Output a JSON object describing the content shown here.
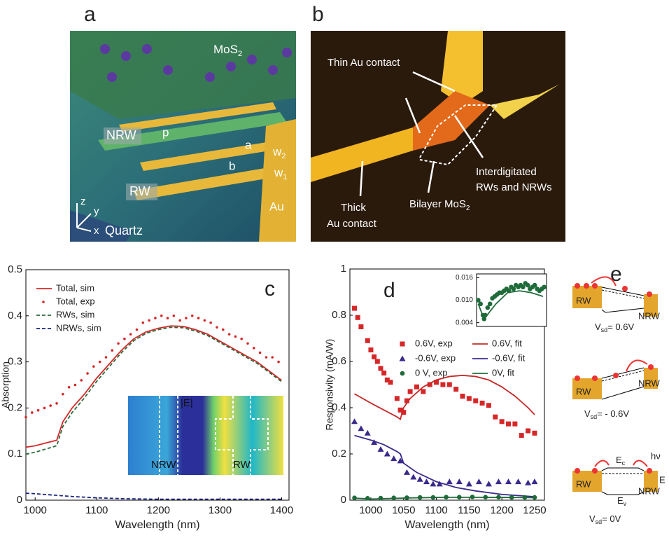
{
  "panel_a": {
    "label": "a",
    "mos2": "MoS",
    "mos2_sub": "2",
    "nrw": "NRW",
    "rw": "RW",
    "p": "p",
    "a": "a",
    "b": "b",
    "w2": "w",
    "w2_sub": "2",
    "w1": "w",
    "w1_sub": "1",
    "au": "Au",
    "z": "z",
    "y": "y",
    "x": "x",
    "quartz": "Quartz"
  },
  "panel_b": {
    "label": "b",
    "thin": "Thin Au contact",
    "inter1": "Interdigitated",
    "inter2": "RWs and NRWs",
    "thick1": "Thick",
    "thick2": "Au contact",
    "bilayer": "Bilayer MoS",
    "bilayer_sub": "2"
  },
  "panel_e": {
    "label": "e",
    "diagrams": [
      {
        "rw": "RW",
        "nrw": "NRW",
        "v": "V",
        "v_sub": "sd",
        "v_rest": "= 0.6V"
      },
      {
        "rw": "RW",
        "nrw": "NRW",
        "v": "V",
        "v_sub": "sd",
        "v_rest": "= - 0.6V"
      },
      {
        "rw": "RW",
        "nrw": "NRW",
        "v": "V",
        "v_sub": "sd",
        "v_rest": "= 0V",
        "ec": "E",
        "ec_sub": "c",
        "ev": "E",
        "ev_sub": "v",
        "hv": "hν",
        "ef": "E"
      }
    ]
  },
  "chart_data": [
    {
      "type": "line",
      "panel": "c",
      "xlabel": "Wavelength (nm)",
      "ylabel": "Absorption",
      "xlim": [
        985,
        1412
      ],
      "xticks": [
        1000,
        1100,
        1200,
        1300,
        1400
      ],
      "ylim": [
        0,
        0.5
      ],
      "yticks": [
        0,
        0.1,
        0.2,
        0.3,
        0.4,
        0.5
      ],
      "legend": "upper left",
      "annotations": [
        "|E|",
        "NRW",
        "RW"
      ],
      "series": [
        {
          "name": "Total, sim",
          "color": "#d62728",
          "style": "solid",
          "x": [
            985,
            1000,
            1020,
            1035,
            1045,
            1060,
            1080,
            1100,
            1120,
            1140,
            1160,
            1180,
            1200,
            1220,
            1240,
            1260,
            1280,
            1300,
            1320,
            1340,
            1360,
            1380,
            1400
          ],
          "values": [
            0.115,
            0.118,
            0.125,
            0.13,
            0.17,
            0.2,
            0.23,
            0.265,
            0.295,
            0.325,
            0.35,
            0.365,
            0.373,
            0.378,
            0.377,
            0.37,
            0.36,
            0.345,
            0.33,
            0.315,
            0.3,
            0.28,
            0.26
          ]
        },
        {
          "name": "Total, exp",
          "color": "#d62728",
          "marker": "dot",
          "x": [
            985,
            995,
            1005,
            1015,
            1025,
            1035,
            1045,
            1055,
            1065,
            1075,
            1085,
            1095,
            1105,
            1115,
            1125,
            1135,
            1145,
            1155,
            1165,
            1175,
            1185,
            1195,
            1205,
            1215,
            1225,
            1235,
            1245,
            1255,
            1265,
            1275,
            1285,
            1295,
            1305,
            1315,
            1325,
            1335,
            1345,
            1355,
            1365,
            1375,
            1385,
            1395
          ],
          "values": [
            0.18,
            0.19,
            0.195,
            0.2,
            0.205,
            0.21,
            0.23,
            0.245,
            0.25,
            0.26,
            0.275,
            0.29,
            0.3,
            0.31,
            0.325,
            0.34,
            0.35,
            0.36,
            0.37,
            0.385,
            0.39,
            0.395,
            0.4,
            0.395,
            0.4,
            0.39,
            0.395,
            0.4,
            0.395,
            0.39,
            0.385,
            0.375,
            0.37,
            0.36,
            0.355,
            0.35,
            0.34,
            0.33,
            0.32,
            0.31,
            0.31,
            0.3
          ]
        },
        {
          "name": "RWs, sim",
          "color": "#2e6b3a",
          "style": "dashed",
          "x": [
            985,
            1000,
            1020,
            1035,
            1045,
            1060,
            1080,
            1100,
            1120,
            1140,
            1160,
            1180,
            1200,
            1220,
            1240,
            1260,
            1280,
            1300,
            1320,
            1340,
            1360,
            1380,
            1400
          ],
          "values": [
            0.1,
            0.104,
            0.112,
            0.118,
            0.16,
            0.19,
            0.222,
            0.258,
            0.289,
            0.32,
            0.346,
            0.362,
            0.37,
            0.375,
            0.374,
            0.367,
            0.357,
            0.342,
            0.327,
            0.312,
            0.297,
            0.277,
            0.257
          ]
        },
        {
          "name": "NRWs, sim",
          "color": "#1a237e",
          "style": "dashed",
          "x": [
            985,
            1000,
            1030,
            1060,
            1100,
            1150,
            1200,
            1300,
            1400
          ],
          "values": [
            0.015,
            0.014,
            0.011,
            0.008,
            0.005,
            0.003,
            0.002,
            0.002,
            0.002
          ]
        }
      ]
    },
    {
      "type": "line",
      "panel": "d",
      "xlabel": "Wavelength (nm)",
      "ylabel": "Responsivity (mA/W)",
      "xlim": [
        968,
        1265
      ],
      "xticks": [
        1000,
        1050,
        1100,
        1150,
        1200,
        1250
      ],
      "ylim": [
        0,
        1
      ],
      "yticks": [
        0,
        0.2,
        0.4,
        0.6,
        0.8,
        1
      ],
      "legend": "upper right",
      "series": [
        {
          "name": "0.6V, exp",
          "color": "#d62728",
          "marker": "square",
          "x": [
            975,
            980,
            985,
            995,
            1000,
            1005,
            1010,
            1015,
            1020,
            1025,
            1030,
            1040,
            1045,
            1050,
            1055,
            1060,
            1070,
            1080,
            1090,
            1100,
            1110,
            1120,
            1130,
            1140,
            1150,
            1160,
            1170,
            1180,
            1190,
            1200,
            1210,
            1220,
            1230,
            1240,
            1250
          ],
          "values": [
            0.83,
            0.79,
            0.75,
            0.69,
            0.65,
            0.62,
            0.6,
            0.57,
            0.55,
            0.52,
            0.51,
            0.44,
            0.39,
            0.38,
            0.43,
            0.47,
            0.49,
            0.47,
            0.5,
            0.51,
            0.5,
            0.5,
            0.48,
            0.45,
            0.44,
            0.43,
            0.42,
            0.41,
            0.36,
            0.34,
            0.33,
            0.33,
            0.28,
            0.3,
            0.29
          ]
        },
        {
          "name": "0.6V, fit",
          "color": "#c62828",
          "style": "solid",
          "x": [
            975,
            1000,
            1020,
            1040,
            1045,
            1050,
            1060,
            1080,
            1100,
            1120,
            1140,
            1160,
            1180,
            1200,
            1220,
            1240,
            1250
          ],
          "values": [
            0.46,
            0.42,
            0.39,
            0.36,
            0.35,
            0.4,
            0.44,
            0.49,
            0.52,
            0.535,
            0.54,
            0.535,
            0.52,
            0.49,
            0.45,
            0.4,
            0.37
          ]
        },
        {
          "name": "-0.6V, exp",
          "color": "#3b2a8c",
          "marker": "triangle",
          "x": [
            975,
            985,
            995,
            1005,
            1015,
            1025,
            1035,
            1045,
            1055,
            1065,
            1075,
            1085,
            1095,
            1105,
            1120,
            1135,
            1150,
            1165,
            1180,
            1195,
            1210,
            1225,
            1240,
            1250
          ],
          "values": [
            0.34,
            0.31,
            0.29,
            0.25,
            0.22,
            0.2,
            0.18,
            0.17,
            0.12,
            0.1,
            0.09,
            0.08,
            0.07,
            0.07,
            0.08,
            0.08,
            0.07,
            0.08,
            0.07,
            0.08,
            0.08,
            0.08,
            0.075,
            0.08
          ]
        },
        {
          "name": "-0.6V, fit",
          "color": "#3b2a8c",
          "style": "solid",
          "x": [
            975,
            1000,
            1020,
            1040,
            1045,
            1050,
            1070,
            1100,
            1130,
            1160,
            1200,
            1250
          ],
          "values": [
            0.28,
            0.26,
            0.24,
            0.21,
            0.2,
            0.16,
            0.12,
            0.08,
            0.055,
            0.04,
            0.025,
            0.015
          ]
        },
        {
          "name": "0 V, exp",
          "color": "#1f6b3a",
          "marker": "circle",
          "x": [
            975,
            995,
            1015,
            1035,
            1055,
            1075,
            1095,
            1115,
            1135,
            1155,
            1175,
            1195,
            1215,
            1235,
            1250
          ],
          "values": [
            0.01,
            0.008,
            0.009,
            0.01,
            0.011,
            0.012,
            0.012,
            0.013,
            0.013,
            0.014,
            0.013,
            0.013,
            0.012,
            0.012,
            0.012
          ]
        },
        {
          "name": "0V, fit",
          "color": "#1f6b3a",
          "style": "solid",
          "x": [
            975,
            1000,
            1050,
            1100,
            1150,
            1200,
            1250
          ],
          "values": [
            0.009,
            0.005,
            0.009,
            0.012,
            0.0125,
            0.012,
            0.011
          ]
        }
      ]
    },
    {
      "type": "line",
      "xlim": [
        968,
        1265
      ],
      "ylim": [
        0.003,
        0.017
      ],
      "yticks": [
        0.004,
        {
          "value": 0.01,
          "label": "0.010"
        },
        0.016
      ],
      "series": [
        {
          "color": "#1f6b3a",
          "marker": "circle",
          "x": [
            975,
            985,
            995,
            1000,
            1005,
            1015,
            1025,
            1035,
            1045,
            1055,
            1065,
            1075,
            1085,
            1095,
            1105,
            1115,
            1125,
            1135,
            1145,
            1155,
            1165,
            1175,
            1185,
            1195,
            1205,
            1215,
            1225,
            1235,
            1245,
            1255
          ],
          "values": [
            0.01,
            0.009,
            0.006,
            0.005,
            0.006,
            0.008,
            0.009,
            0.0105,
            0.011,
            0.0115,
            0.012,
            0.012,
            0.0125,
            0.013,
            0.0125,
            0.0135,
            0.013,
            0.014,
            0.0135,
            0.014,
            0.0135,
            0.0145,
            0.014,
            0.013,
            0.0135,
            0.014,
            0.013,
            0.0125,
            0.013,
            0.0135
          ]
        },
        {
          "color": "#1f6b3a",
          "style": "solid",
          "x": [
            975,
            1000,
            1050,
            1100,
            1150,
            1200,
            1250
          ],
          "values": [
            0.009,
            0.005,
            0.009,
            0.012,
            0.0125,
            0.012,
            0.011
          ]
        }
      ]
    }
  ]
}
